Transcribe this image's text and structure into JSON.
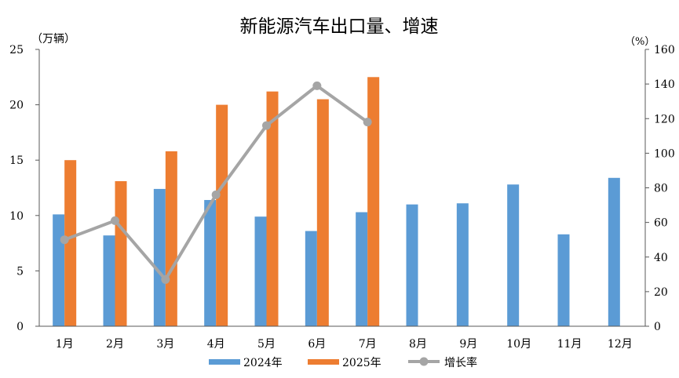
{
  "chart_data": {
    "type": "bar",
    "title": "新能源汽车出口量、增速",
    "ylabel_left": "（万辆）",
    "ylabel_right": "（%）",
    "categories": [
      "1月",
      "2月",
      "3月",
      "4月",
      "5月",
      "6月",
      "7月",
      "8月",
      "9月",
      "10月",
      "11月",
      "12月"
    ],
    "ylim_left": [
      0,
      25
    ],
    "yticks_left": [
      "0",
      "5",
      "10",
      "15",
      "20",
      "25"
    ],
    "ylim_right": [
      0,
      160
    ],
    "yticks_right": [
      "0",
      "20",
      "40",
      "60",
      "80",
      "100",
      "120",
      "140",
      "160"
    ],
    "grid": false,
    "legend_position": "bottom",
    "series": [
      {
        "name": "2024年",
        "type": "bar",
        "axis": "left",
        "color": "#5b9bd5",
        "values": [
          10.1,
          8.2,
          12.4,
          11.4,
          9.9,
          8.6,
          10.3,
          11.0,
          11.1,
          12.8,
          8.3,
          13.4
        ]
      },
      {
        "name": "2025年",
        "type": "bar",
        "axis": "left",
        "color": "#ed7d31",
        "values": [
          15.0,
          13.1,
          15.8,
          20.0,
          21.2,
          20.5,
          22.5,
          null,
          null,
          null,
          null,
          null
        ]
      },
      {
        "name": "增长率",
        "type": "line",
        "axis": "right",
        "color": "#a5a5a5",
        "values": [
          50,
          61,
          27,
          76,
          116,
          139,
          118,
          null,
          null,
          null,
          null,
          null
        ]
      }
    ]
  }
}
